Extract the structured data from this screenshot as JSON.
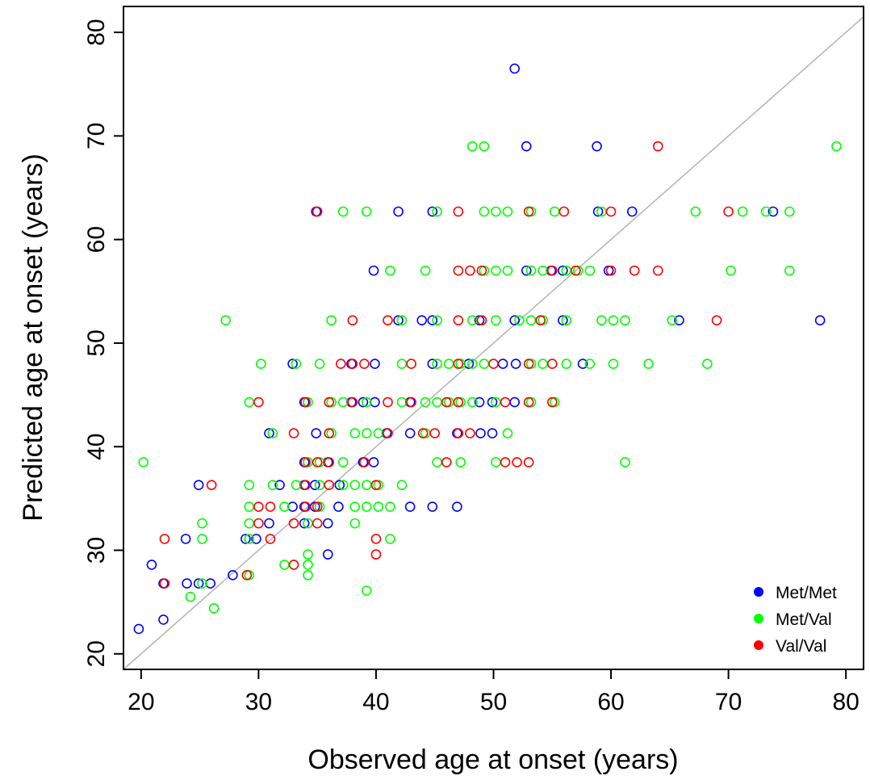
{
  "chart_data": {
    "type": "scatter",
    "title": "",
    "xlabel": "Observed age at onset (years)",
    "ylabel": "Predicted age at onset (years)",
    "xlim": [
      18.5,
      81.5
    ],
    "ylim": [
      18.5,
      82.5
    ],
    "xticks": [
      "20",
      "30",
      "40",
      "50",
      "60",
      "70",
      "80"
    ],
    "yticks": [
      "20",
      "30",
      "40",
      "50",
      "60",
      "70",
      "80"
    ],
    "xtick_values": [
      20,
      30,
      40,
      50,
      60,
      70,
      80
    ],
    "ytick_values": [
      20,
      30,
      40,
      50,
      60,
      70,
      80
    ],
    "grid": false,
    "reference_line": "y = x",
    "legend_position": "bottom-right",
    "marker": "open-circle",
    "series": [
      {
        "name": "Met/Met",
        "color": "#0000ff",
        "points": [
          [
            51.8,
            76.5
          ],
          [
            52.8,
            69
          ],
          [
            58.8,
            69
          ],
          [
            34.9,
            62.7
          ],
          [
            41.9,
            62.7
          ],
          [
            44.8,
            62.7
          ],
          [
            58.9,
            62.7
          ],
          [
            61.8,
            62.7
          ],
          [
            73.8,
            62.7
          ],
          [
            39.8,
            57
          ],
          [
            52.8,
            57
          ],
          [
            54.9,
            57
          ],
          [
            55.9,
            57
          ],
          [
            59.8,
            57
          ],
          [
            41.9,
            52.2
          ],
          [
            43.9,
            52.2
          ],
          [
            44.8,
            52.2
          ],
          [
            48.8,
            52.2
          ],
          [
            51.8,
            52.2
          ],
          [
            55.9,
            52.2
          ],
          [
            65.8,
            52.2
          ],
          [
            77.8,
            52.2
          ],
          [
            32.9,
            48
          ],
          [
            37.9,
            48
          ],
          [
            39.9,
            48
          ],
          [
            44.8,
            48
          ],
          [
            47.9,
            48
          ],
          [
            50.8,
            48
          ],
          [
            51.9,
            48
          ],
          [
            57.6,
            48
          ],
          [
            33.9,
            44.3
          ],
          [
            37.9,
            44.3
          ],
          [
            38.9,
            44.3
          ],
          [
            39.9,
            44.3
          ],
          [
            42.9,
            44.3
          ],
          [
            48.8,
            44.3
          ],
          [
            49.9,
            44.3
          ],
          [
            51.8,
            44.3
          ],
          [
            30.9,
            41.3
          ],
          [
            34.9,
            41.3
          ],
          [
            40.9,
            41.3
          ],
          [
            42.9,
            41.3
          ],
          [
            46.9,
            41.3
          ],
          [
            48.9,
            41.3
          ],
          [
            49.9,
            41.3
          ],
          [
            33.9,
            38.5
          ],
          [
            35.9,
            38.5
          ],
          [
            38.9,
            38.5
          ],
          [
            39.8,
            38.5
          ],
          [
            24.9,
            36.3
          ],
          [
            31.8,
            36.3
          ],
          [
            33.9,
            36.3
          ],
          [
            34.8,
            36.3
          ],
          [
            36.9,
            36.3
          ],
          [
            32.9,
            34.2
          ],
          [
            33.9,
            34.2
          ],
          [
            34.8,
            34.2
          ],
          [
            36.8,
            34.2
          ],
          [
            42.9,
            34.2
          ],
          [
            44.8,
            34.2
          ],
          [
            46.9,
            34.2
          ],
          [
            30.9,
            32.6
          ],
          [
            33.9,
            32.6
          ],
          [
            35.9,
            32.6
          ],
          [
            23.8,
            31.1
          ],
          [
            28.9,
            31.1
          ],
          [
            29.8,
            31.1
          ],
          [
            20.9,
            28.6
          ],
          [
            21.9,
            26.8
          ],
          [
            23.9,
            26.8
          ],
          [
            24.9,
            26.8
          ],
          [
            25.9,
            26.8
          ],
          [
            27.8,
            27.6
          ],
          [
            35.9,
            29.6
          ],
          [
            21.9,
            23.3
          ],
          [
            19.8,
            22.4
          ]
        ]
      },
      {
        "name": "Met/Val",
        "color": "#00ff00",
        "points": [
          [
            48.2,
            69
          ],
          [
            49.2,
            69
          ],
          [
            79.2,
            69
          ],
          [
            37.2,
            62.7
          ],
          [
            39.2,
            62.7
          ],
          [
            45.2,
            62.7
          ],
          [
            49.2,
            62.7
          ],
          [
            50.2,
            62.7
          ],
          [
            51.2,
            62.7
          ],
          [
            53.2,
            62.7
          ],
          [
            55.2,
            62.7
          ],
          [
            59.2,
            62.7
          ],
          [
            67.2,
            62.7
          ],
          [
            71.2,
            62.7
          ],
          [
            73.2,
            62.7
          ],
          [
            75.2,
            62.7
          ],
          [
            41.2,
            57
          ],
          [
            44.2,
            57
          ],
          [
            49.2,
            57
          ],
          [
            50.2,
            57
          ],
          [
            51.2,
            57
          ],
          [
            53.2,
            57
          ],
          [
            54.2,
            57
          ],
          [
            56.2,
            57
          ],
          [
            57.2,
            57
          ],
          [
            58.2,
            57
          ],
          [
            70.2,
            57
          ],
          [
            75.2,
            57
          ],
          [
            27.2,
            52.2
          ],
          [
            36.2,
            52.2
          ],
          [
            42.2,
            52.2
          ],
          [
            45.2,
            52.2
          ],
          [
            48.2,
            52.2
          ],
          [
            50.2,
            52.2
          ],
          [
            52.2,
            52.2
          ],
          [
            53.2,
            52.2
          ],
          [
            54.2,
            52.2
          ],
          [
            56.2,
            52.2
          ],
          [
            59.2,
            52.2
          ],
          [
            60.2,
            52.2
          ],
          [
            61.2,
            52.2
          ],
          [
            65.2,
            52.2
          ],
          [
            30.2,
            48
          ],
          [
            33.2,
            48
          ],
          [
            35.2,
            48
          ],
          [
            42.2,
            48
          ],
          [
            45.2,
            48
          ],
          [
            46.2,
            48
          ],
          [
            47.2,
            48
          ],
          [
            48.2,
            48
          ],
          [
            49.2,
            48
          ],
          [
            53.2,
            48
          ],
          [
            54.2,
            48
          ],
          [
            56.2,
            48
          ],
          [
            58.2,
            48
          ],
          [
            60.2,
            48
          ],
          [
            63.2,
            48
          ],
          [
            68.2,
            48
          ],
          [
            29.2,
            44.3
          ],
          [
            34.2,
            44.3
          ],
          [
            36.2,
            44.3
          ],
          [
            37.2,
            44.3
          ],
          [
            39.2,
            44.3
          ],
          [
            42.2,
            44.3
          ],
          [
            44.2,
            44.3
          ],
          [
            45.2,
            44.3
          ],
          [
            46.2,
            44.3
          ],
          [
            47.2,
            44.3
          ],
          [
            48.2,
            44.3
          ],
          [
            50.2,
            44.3
          ],
          [
            53.2,
            44.3
          ],
          [
            55.2,
            44.3
          ],
          [
            31.2,
            41.3
          ],
          [
            36.2,
            41.3
          ],
          [
            38.2,
            41.3
          ],
          [
            39.2,
            41.3
          ],
          [
            40.2,
            41.3
          ],
          [
            44.2,
            41.3
          ],
          [
            51.2,
            41.3
          ],
          [
            20.2,
            38.5
          ],
          [
            34.2,
            38.5
          ],
          [
            35.2,
            38.5
          ],
          [
            37.2,
            38.5
          ],
          [
            45.2,
            38.5
          ],
          [
            47.2,
            38.5
          ],
          [
            50.2,
            38.5
          ],
          [
            61.2,
            38.5
          ],
          [
            29.2,
            36.3
          ],
          [
            31.2,
            36.3
          ],
          [
            33.2,
            36.3
          ],
          [
            35.2,
            36.3
          ],
          [
            37.2,
            36.3
          ],
          [
            38.2,
            36.3
          ],
          [
            39.2,
            36.3
          ],
          [
            40.2,
            36.3
          ],
          [
            42.2,
            36.3
          ],
          [
            29.2,
            34.2
          ],
          [
            32.2,
            34.2
          ],
          [
            35.2,
            34.2
          ],
          [
            38.2,
            34.2
          ],
          [
            39.2,
            34.2
          ],
          [
            40.2,
            34.2
          ],
          [
            41.2,
            34.2
          ],
          [
            25.2,
            32.6
          ],
          [
            29.2,
            32.6
          ],
          [
            34.2,
            32.6
          ],
          [
            38.2,
            32.6
          ],
          [
            25.2,
            31.1
          ],
          [
            29.2,
            31.1
          ],
          [
            41.2,
            31.1
          ],
          [
            32.2,
            28.6
          ],
          [
            34.2,
            28.6
          ],
          [
            34.2,
            29.6
          ],
          [
            34.2,
            27.6
          ],
          [
            29.2,
            27.6
          ],
          [
            25.2,
            26.8
          ],
          [
            24.2,
            25.5
          ],
          [
            26.2,
            24.4
          ],
          [
            39.2,
            26.1
          ]
        ]
      },
      {
        "name": "Val/Val",
        "color": "#ff0000",
        "points": [
          [
            64,
            69
          ],
          [
            35,
            62.7
          ],
          [
            47,
            62.7
          ],
          [
            53,
            62.7
          ],
          [
            56,
            62.7
          ],
          [
            60,
            62.7
          ],
          [
            70,
            62.7
          ],
          [
            47,
            57
          ],
          [
            48,
            57
          ],
          [
            49,
            57
          ],
          [
            55,
            57
          ],
          [
            57,
            57
          ],
          [
            60,
            57
          ],
          [
            62,
            57
          ],
          [
            64,
            57
          ],
          [
            38,
            52.2
          ],
          [
            41,
            52.2
          ],
          [
            47,
            52.2
          ],
          [
            49,
            52.2
          ],
          [
            54,
            52.2
          ],
          [
            69,
            52.2
          ],
          [
            37,
            48
          ],
          [
            38,
            48
          ],
          [
            39,
            48
          ],
          [
            43,
            48
          ],
          [
            47,
            48
          ],
          [
            50,
            48
          ],
          [
            53,
            48
          ],
          [
            55,
            48
          ],
          [
            30,
            44.3
          ],
          [
            34,
            44.3
          ],
          [
            36,
            44.3
          ],
          [
            38,
            44.3
          ],
          [
            41,
            44.3
          ],
          [
            43,
            44.3
          ],
          [
            46,
            44.3
          ],
          [
            47,
            44.3
          ],
          [
            51,
            44.3
          ],
          [
            53,
            44.3
          ],
          [
            55,
            44.3
          ],
          [
            33,
            41.3
          ],
          [
            36,
            41.3
          ],
          [
            41,
            41.3
          ],
          [
            44,
            41.3
          ],
          [
            45,
            41.3
          ],
          [
            47,
            41.3
          ],
          [
            48,
            41.3
          ],
          [
            34,
            38.5
          ],
          [
            35,
            38.5
          ],
          [
            36,
            38.5
          ],
          [
            39,
            38.5
          ],
          [
            46,
            38.5
          ],
          [
            51,
            38.5
          ],
          [
            52,
            38.5
          ],
          [
            53,
            38.5
          ],
          [
            26,
            36.3
          ],
          [
            34,
            36.3
          ],
          [
            36,
            36.3
          ],
          [
            40,
            36.3
          ],
          [
            30,
            34.2
          ],
          [
            31,
            34.2
          ],
          [
            34,
            34.2
          ],
          [
            35,
            34.2
          ],
          [
            30,
            32.6
          ],
          [
            33,
            32.6
          ],
          [
            35,
            32.6
          ],
          [
            22,
            31.1
          ],
          [
            31,
            31.1
          ],
          [
            40,
            31.1
          ],
          [
            33,
            28.6
          ],
          [
            29,
            27.6
          ],
          [
            40,
            29.6
          ],
          [
            22,
            26.8
          ]
        ]
      }
    ]
  }
}
